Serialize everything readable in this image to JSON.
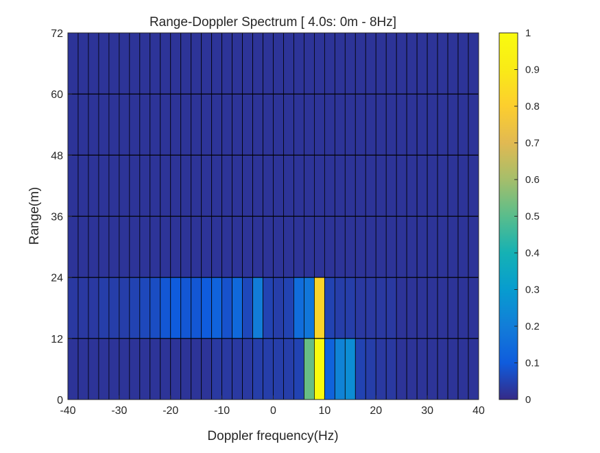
{
  "chart_data": {
    "type": "heatmap",
    "title": "Range-Doppler Spectrum [ 4.0s: 0m - 8Hz]",
    "xlabel": "Doppler frequency(Hz)",
    "ylabel": "Range(m)",
    "xlim": [
      -40,
      40
    ],
    "ylim": [
      0,
      72
    ],
    "x_ticks": [
      "-40",
      "-30",
      "-20",
      "-10",
      "0",
      "10",
      "20",
      "30",
      "40"
    ],
    "y_ticks": [
      "0",
      "12",
      "24",
      "36",
      "48",
      "60",
      "72"
    ],
    "x_bin_width": 2,
    "y_bin_width": 12,
    "range_bins": [
      0,
      12,
      24,
      36,
      48,
      60
    ],
    "doppler_bins": [
      -40,
      -38,
      -36,
      -34,
      -32,
      -30,
      -28,
      -26,
      -24,
      -22,
      -20,
      -18,
      -16,
      -14,
      -12,
      -10,
      -8,
      -6,
      -4,
      -2,
      0,
      2,
      4,
      6,
      8,
      10,
      12,
      14,
      16,
      18,
      20,
      22,
      24,
      26,
      28,
      30,
      32,
      34,
      36,
      38
    ],
    "values": [
      [
        0.02,
        0.02,
        0.02,
        0.02,
        0.02,
        0.02,
        0.02,
        0.02,
        0.02,
        0.02,
        0.02,
        0.02,
        0.02,
        0.02,
        0.03,
        0.03,
        0.03,
        0.03,
        0.04,
        0.04,
        0.04,
        0.04,
        0.05,
        0.52,
        1.0,
        0.12,
        0.22,
        0.25,
        0.05,
        0.04,
        0.03,
        0.03,
        0.02,
        0.02,
        0.02,
        0.02,
        0.02,
        0.02,
        0.02,
        0.02
      ],
      [
        0.03,
        0.03,
        0.03,
        0.04,
        0.04,
        0.04,
        0.05,
        0.06,
        0.07,
        0.09,
        0.1,
        0.09,
        0.09,
        0.1,
        0.12,
        0.08,
        0.14,
        0.06,
        0.2,
        0.05,
        0.04,
        0.05,
        0.15,
        0.18,
        0.82,
        0.05,
        0.04,
        0.04,
        0.03,
        0.03,
        0.03,
        0.03,
        0.02,
        0.02,
        0.02,
        0.02,
        0.02,
        0.02,
        0.02,
        0.02
      ],
      [
        0.02,
        0.02,
        0.02,
        0.02,
        0.02,
        0.02,
        0.02,
        0.02,
        0.02,
        0.02,
        0.02,
        0.02,
        0.02,
        0.02,
        0.02,
        0.02,
        0.02,
        0.02,
        0.02,
        0.02,
        0.02,
        0.02,
        0.02,
        0.02,
        0.02,
        0.02,
        0.02,
        0.02,
        0.02,
        0.02,
        0.02,
        0.02,
        0.02,
        0.02,
        0.02,
        0.02,
        0.02,
        0.02,
        0.02,
        0.02
      ],
      [
        0.02,
        0.02,
        0.02,
        0.02,
        0.02,
        0.02,
        0.02,
        0.02,
        0.02,
        0.02,
        0.02,
        0.02,
        0.02,
        0.02,
        0.02,
        0.02,
        0.02,
        0.02,
        0.02,
        0.02,
        0.02,
        0.02,
        0.02,
        0.02,
        0.02,
        0.02,
        0.02,
        0.02,
        0.02,
        0.02,
        0.02,
        0.02,
        0.02,
        0.02,
        0.02,
        0.02,
        0.02,
        0.02,
        0.02,
        0.02
      ],
      [
        0.02,
        0.02,
        0.02,
        0.02,
        0.02,
        0.02,
        0.02,
        0.02,
        0.02,
        0.02,
        0.02,
        0.02,
        0.02,
        0.02,
        0.02,
        0.02,
        0.02,
        0.02,
        0.02,
        0.02,
        0.02,
        0.02,
        0.02,
        0.02,
        0.02,
        0.02,
        0.02,
        0.02,
        0.02,
        0.02,
        0.02,
        0.02,
        0.02,
        0.02,
        0.02,
        0.02,
        0.02,
        0.02,
        0.02,
        0.02
      ],
      [
        0.02,
        0.02,
        0.02,
        0.02,
        0.02,
        0.02,
        0.02,
        0.02,
        0.02,
        0.02,
        0.02,
        0.02,
        0.02,
        0.02,
        0.02,
        0.02,
        0.02,
        0.02,
        0.02,
        0.02,
        0.02,
        0.02,
        0.02,
        0.02,
        0.02,
        0.02,
        0.02,
        0.02,
        0.02,
        0.02,
        0.02,
        0.02,
        0.02,
        0.02,
        0.02,
        0.02,
        0.02,
        0.02,
        0.02,
        0.02
      ]
    ],
    "colorbar": {
      "colormap": "parula",
      "range": [
        0,
        1
      ],
      "ticks": [
        "0",
        "0.1",
        "0.2",
        "0.3",
        "0.4",
        "0.5",
        "0.6",
        "0.7",
        "0.8",
        "0.9",
        "1"
      ]
    },
    "grid": true,
    "cell_edge_color": "#000000"
  }
}
